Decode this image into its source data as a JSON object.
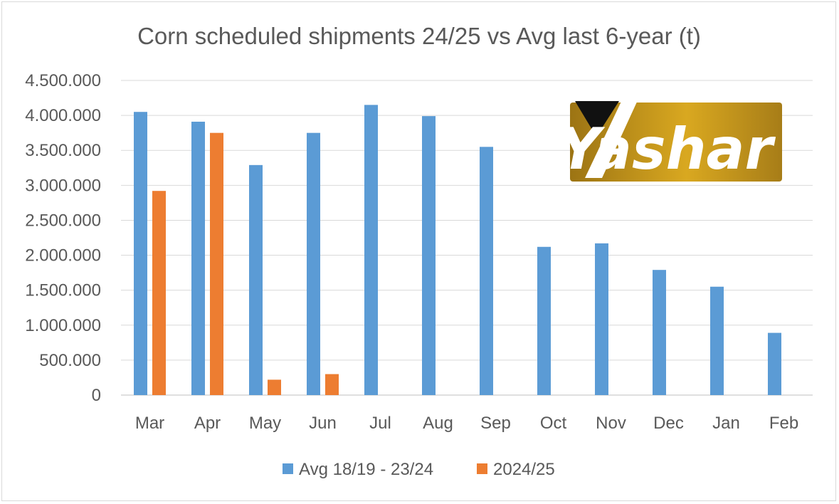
{
  "chart_data": {
    "type": "bar",
    "title": "Corn scheduled shipments 24/25 vs Avg last 6-year (t)",
    "xlabel": "",
    "ylabel": "",
    "categories": [
      "Mar",
      "Apr",
      "May",
      "Jun",
      "Jul",
      "Aug",
      "Sep",
      "Oct",
      "Nov",
      "Dec",
      "Jan",
      "Feb"
    ],
    "series": [
      {
        "name": "Avg 18/19 - 23/24",
        "color": "#5b9bd5",
        "values": [
          4050000,
          3910000,
          3290000,
          3750000,
          4150000,
          3990000,
          3550000,
          2120000,
          2170000,
          1790000,
          1550000,
          890000
        ]
      },
      {
        "name": "2024/25",
        "color": "#ed7d31",
        "values": [
          2920000,
          3750000,
          220000,
          300000,
          null,
          null,
          null,
          null,
          null,
          null,
          null,
          null
        ]
      }
    ],
    "ylim": [
      0,
      4500000
    ],
    "ytick_labels": [
      "0",
      "500.000",
      "1.000.000",
      "1.500.000",
      "2.000.000",
      "2.500.000",
      "3.000.000",
      "3.500.000",
      "4.000.000",
      "4.500.000"
    ],
    "grid": true,
    "legend_position": "bottom"
  },
  "logo": {
    "text": "Yashar"
  }
}
